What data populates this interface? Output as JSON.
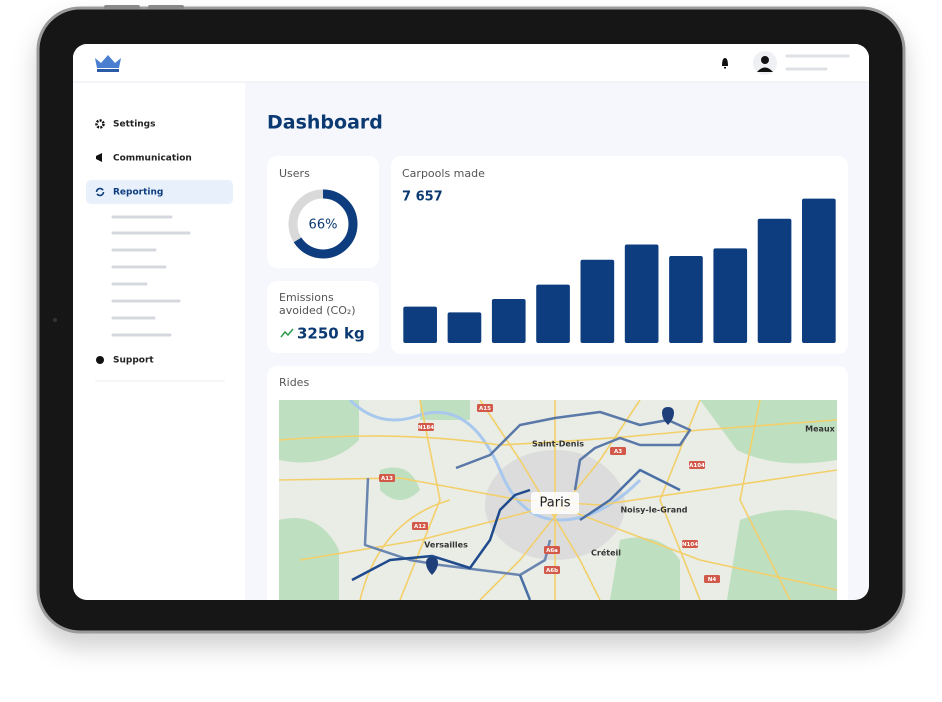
{
  "sidebar": {
    "items": [
      "Settings",
      "Communication",
      "Reporting",
      "Support"
    ]
  },
  "dashboard": {
    "title": "Dashboard"
  },
  "users": {
    "title": "Users",
    "value": 66,
    "value_label": "66%"
  },
  "emissions": {
    "label_lines": [
      "Emissions",
      "avoided (CO₂)"
    ],
    "value": "3250 kg"
  },
  "chart_data": {
    "type": "bar",
    "title": "Carpools made",
    "subtitle": "7 657",
    "values": [
      38,
      32,
      46,
      61,
      87,
      103,
      91,
      99,
      130,
      151
    ],
    "color": "#0d3d7f",
    "ylim": [
      0,
      160
    ]
  },
  "rides": {
    "title": "Rides",
    "places": [
      "Saint-Denis",
      "Paris",
      "Noisy-le-Grand",
      "Versailles",
      "Créteil",
      "Meaux"
    ],
    "roads": [
      "A15",
      "N184",
      "A3",
      "A104",
      "A13",
      "A12",
      "N104",
      "A6a",
      "A6b",
      "N4"
    ]
  }
}
